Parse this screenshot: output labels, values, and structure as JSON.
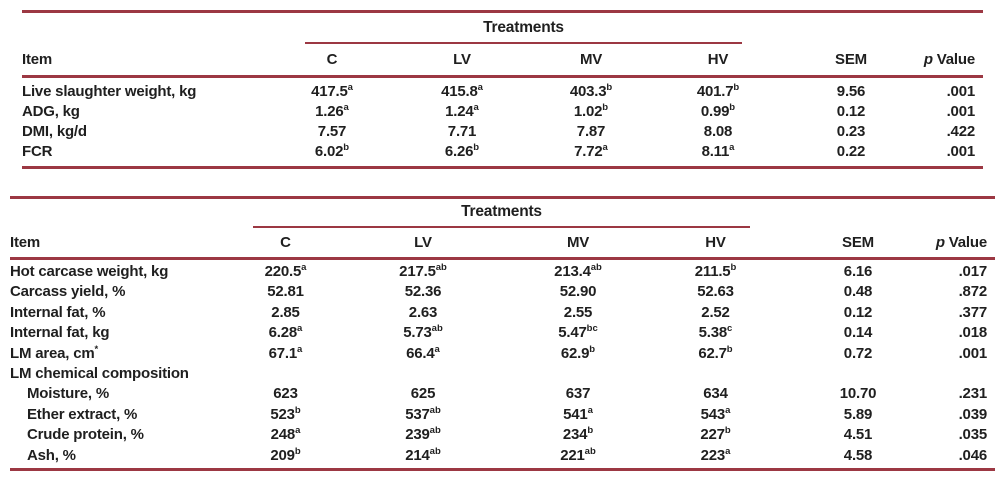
{
  "colors": {
    "rule": "#9c3843",
    "text": "#1f1f1f"
  },
  "tables": [
    {
      "spanner": "Treatments",
      "headers": [
        "Item",
        "C",
        "LV",
        "MV",
        "HV",
        "SEM",
        "p Value"
      ],
      "rows": [
        {
          "item": "Live slaughter weight, kg",
          "indent": false,
          "values": [
            "417.5^a",
            "415.8^a",
            "403.3^b",
            "401.7^b",
            "9.56",
            ".001"
          ]
        },
        {
          "item": "ADG, kg",
          "indent": false,
          "values": [
            "1.26^a",
            "1.24^a",
            "1.02^b",
            "0.99^b",
            "0.12",
            ".001"
          ]
        },
        {
          "item": "DMI, kg/d",
          "indent": false,
          "values": [
            "7.57",
            "7.71",
            "7.87",
            "8.08",
            "0.23",
            ".422"
          ]
        },
        {
          "item": "FCR",
          "indent": false,
          "values": [
            "6.02^b",
            "6.26^b",
            "7.72^a",
            "8.11^a",
            "0.22",
            ".001"
          ]
        }
      ]
    },
    {
      "spanner": "Treatments",
      "headers": [
        "Item",
        "C",
        "LV",
        "MV",
        "HV",
        "SEM",
        "p Value"
      ],
      "rows": [
        {
          "item": "Hot carcase weight, kg",
          "indent": false,
          "values": [
            "220.5^a",
            "217.5^ab",
            "213.4^ab",
            "211.5^b",
            "6.16",
            ".017"
          ]
        },
        {
          "item": "Carcass yield, %",
          "indent": false,
          "values": [
            "52.81",
            "52.36",
            "52.90",
            "52.63",
            "0.48",
            ".872"
          ]
        },
        {
          "item": "Internal fat, %",
          "indent": false,
          "values": [
            "2.85",
            "2.63",
            "2.55",
            "2.52",
            "0.12",
            ".377"
          ]
        },
        {
          "item": "Internal fat, kg",
          "indent": false,
          "values": [
            "6.28^a",
            "5.73^ab",
            "5.47^bc",
            "5.38^c",
            "0.14",
            ".018"
          ]
        },
        {
          "item": "LM area, cm^*",
          "indent": false,
          "values": [
            "67.1^a",
            "66.4^a",
            "62.9^b",
            "62.7^b",
            "0.72",
            ".001"
          ]
        },
        {
          "item": "LM chemical composition",
          "indent": false,
          "values": [
            "",
            "",
            "",
            "",
            "",
            ""
          ]
        },
        {
          "item": "Moisture, %",
          "indent": true,
          "values": [
            "623",
            "625",
            "637",
            "634",
            "10.70",
            ".231"
          ]
        },
        {
          "item": "Ether extract, %",
          "indent": true,
          "values": [
            "523^b",
            "537^ab",
            "541^a",
            "543^a",
            "5.89",
            ".039"
          ]
        },
        {
          "item": "Crude protein, %",
          "indent": true,
          "values": [
            "248^a",
            "239^ab",
            "234^b",
            "227^b",
            "4.51",
            ".035"
          ]
        },
        {
          "item": "Ash, %",
          "indent": true,
          "values": [
            "209^b",
            "214^ab",
            "221^ab",
            "223^a",
            "4.58",
            ".046"
          ]
        }
      ]
    }
  ]
}
